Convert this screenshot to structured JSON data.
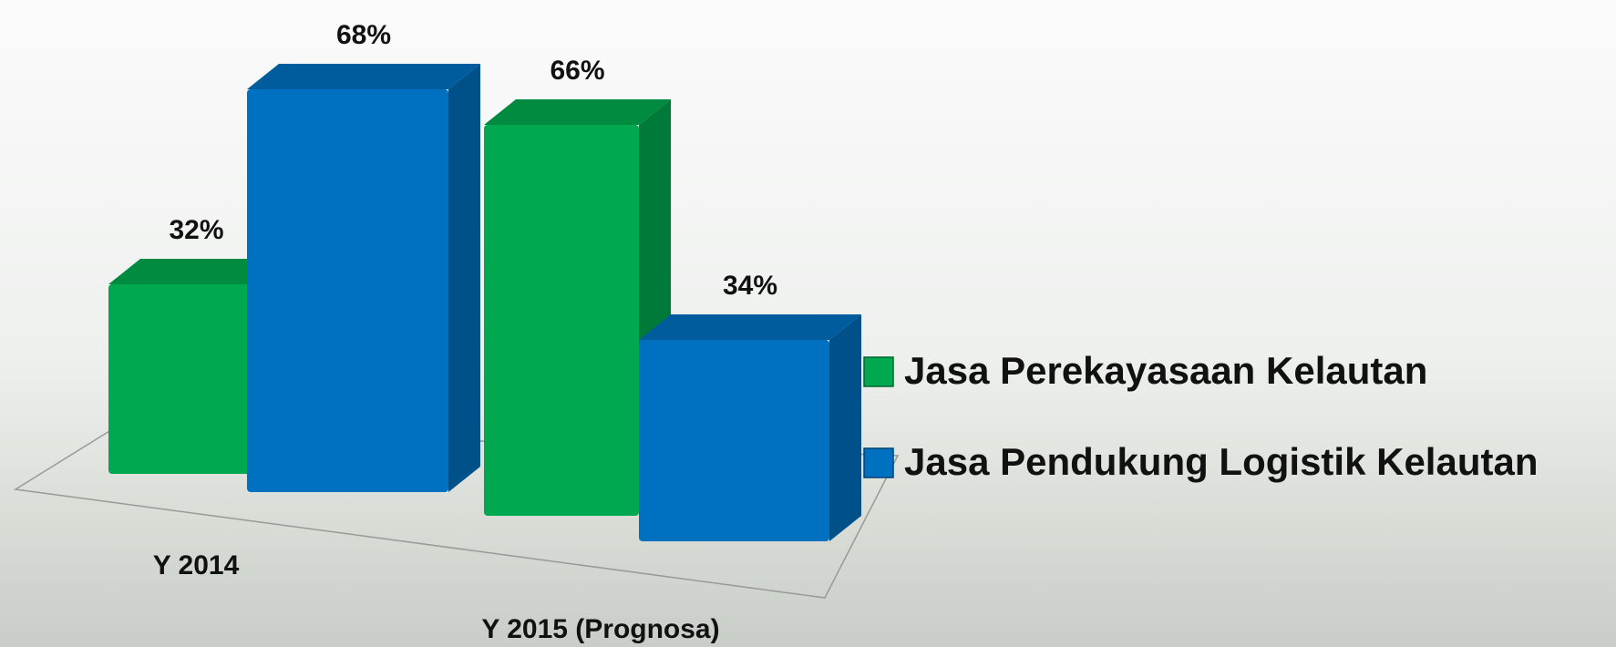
{
  "chart_data": {
    "type": "bar3d",
    "categories": [
      "Y 2014",
      "Y 2015 (Prognosa)"
    ],
    "series": [
      {
        "name": "Jasa Perekayasaan Kelautan",
        "color": "#00a94f",
        "values": [
          32,
          66
        ],
        "value_labels": [
          "32%",
          "66%"
        ]
      },
      {
        "name": "Jasa Pendukung Logistik Kelautan",
        "color": "#0070c0",
        "values": [
          68,
          34
        ],
        "value_labels": [
          "68%",
          "34%"
        ]
      }
    ],
    "legend": "right"
  }
}
